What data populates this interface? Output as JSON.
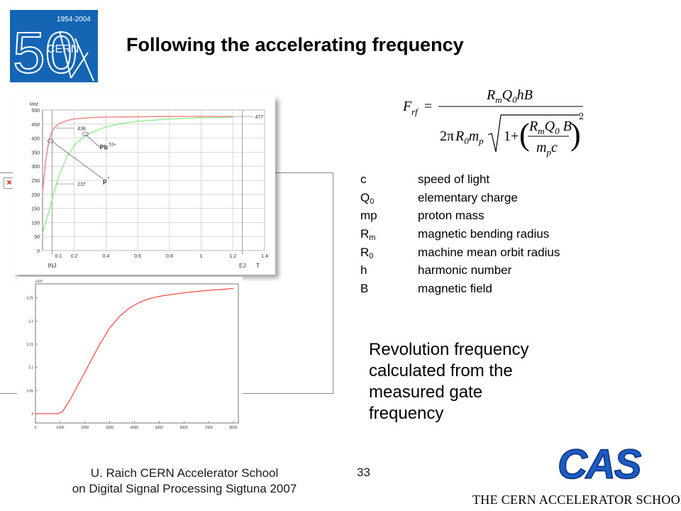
{
  "slide": {
    "title": "Following the accelerating frequency",
    "logo": {
      "years": "1954-2004",
      "anniversary": "50",
      "org": "CERN"
    },
    "formula": {
      "lhs": "F",
      "lhs_sub": "rf",
      "numerator": "R_m Q_0 h B",
      "denominator": "2π R_0 m_p √(1 + (R_m Q_0 B / (m_p c))^2)"
    },
    "legend": [
      {
        "symbol": "c",
        "sub": "",
        "description": "speed of light"
      },
      {
        "symbol": "Q",
        "sub": "0",
        "description": "elementary charge"
      },
      {
        "symbol": "mp",
        "sub": "",
        "description": "proton mass"
      },
      {
        "symbol": "R",
        "sub": "m",
        "description": "magnetic bending radius"
      },
      {
        "symbol": "R",
        "sub": "0",
        "description": "machine mean orbit radius"
      },
      {
        "symbol": "h",
        "sub": "",
        "description": "harmonic number"
      },
      {
        "symbol": "B",
        "sub": "",
        "description": "magnetic field"
      }
    ],
    "revolution_text": [
      "Revolution frequency",
      "calculated from the",
      "measured gate",
      "frequency"
    ],
    "broken_image_icon": "×",
    "footer": {
      "line1": "U. Raich  CERN Accelerator School",
      "line2": "on Digital Signal Processing  Sigtuna 2007",
      "page_number": "33",
      "cas_logo": "CAS",
      "school_name": "THE CERN ACCELERATOR SCHOOL"
    }
  },
  "chart_data": [
    {
      "type": "line",
      "ylabel": "kHz",
      "xlabel": "T",
      "ylim": [
        0,
        500
      ],
      "xlim": [
        0,
        1.4
      ],
      "yticks": [
        "0",
        "50",
        "100",
        "150",
        "200",
        "250",
        "300",
        "350",
        "400",
        "450",
        "500"
      ],
      "xticks": [
        "0.2",
        "0.4",
        "0.6",
        "0.8",
        "1",
        "1.2",
        "1.4"
      ],
      "extra_xtick": "0.1",
      "time_markers": [
        "INJ",
        "EJ"
      ],
      "annotations": [
        "477",
        "436",
        "237"
      ],
      "series": [
        {
          "name": "p+",
          "color": "#f08080",
          "x": [
            0.0,
            0.02,
            0.04,
            0.06,
            0.08,
            0.1,
            0.15,
            0.2,
            0.3,
            0.4,
            0.6,
            0.8,
            1.0,
            1.2
          ],
          "values": [
            210,
            320,
            390,
            425,
            440,
            450,
            462,
            468,
            473,
            475,
            476,
            477,
            477,
            477
          ]
        },
        {
          "name": "Pb53+",
          "color": "#90ee90",
          "x": [
            0.0,
            0.05,
            0.1,
            0.15,
            0.2,
            0.25,
            0.3,
            0.4,
            0.5,
            0.6,
            0.8,
            1.0,
            1.2
          ],
          "values": [
            60,
            160,
            260,
            330,
            375,
            400,
            418,
            440,
            452,
            460,
            468,
            472,
            474
          ]
        }
      ]
    },
    {
      "type": "line",
      "y_exponent": "x10⁵",
      "ylim": [
        2.98,
        3.28
      ],
      "xlim": [
        0,
        8200
      ],
      "yticks": [
        "3",
        "3.05",
        "3.1",
        "3.15",
        "3.2",
        "3.25"
      ],
      "xticks": [
        "0",
        "1000",
        "2000",
        "3000",
        "4000",
        "5000",
        "6000",
        "7000",
        "8000"
      ],
      "series": [
        {
          "color": "#ff2020",
          "x": [
            0,
            500,
            900,
            1100,
            1400,
            1800,
            2200,
            2600,
            3000,
            3400,
            3800,
            4200,
            4600,
            5000,
            5600,
            6200,
            7000,
            8000
          ],
          "values": [
            3.0,
            3.0,
            3.0,
            3.005,
            3.03,
            3.07,
            3.11,
            3.15,
            3.185,
            3.21,
            3.228,
            3.24,
            3.248,
            3.253,
            3.258,
            3.262,
            3.266,
            3.27
          ]
        }
      ]
    }
  ]
}
